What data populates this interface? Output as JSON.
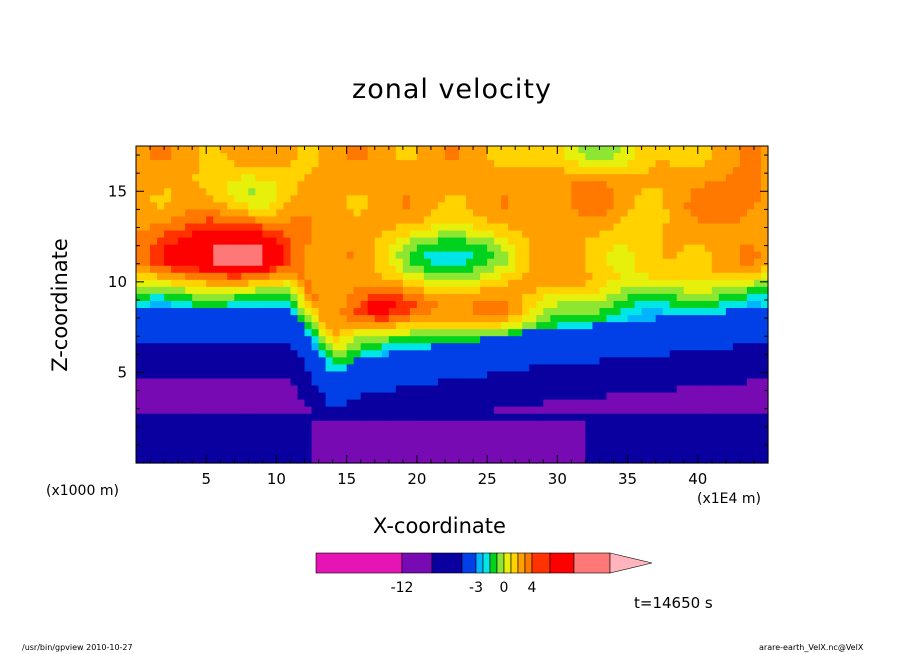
{
  "chart_data": {
    "type": "heatmap",
    "title": "zonal velocity",
    "xlabel": "X-coordinate",
    "ylabel": "Z-coordinate",
    "x_unit_left": "(x1000 m)",
    "x_unit_right": "(x1E4 m)",
    "xlim": [
      0,
      45
    ],
    "ylim": [
      0,
      17.5
    ],
    "x_ticks": [
      "5",
      "10",
      "15",
      "20",
      "25",
      "30",
      "35",
      "40"
    ],
    "x_tick_values": [
      5,
      10,
      15,
      20,
      25,
      30,
      35,
      40
    ],
    "y_ticks": [
      "5",
      "10",
      "15"
    ],
    "y_tick_values": [
      5,
      10,
      15
    ],
    "colorbar": {
      "labels": [
        "-12",
        "-3",
        "0",
        "4"
      ],
      "label_values": [
        -12,
        -3,
        0,
        4
      ],
      "levels": [
        -20,
        -12,
        -9,
        -6,
        -4,
        -3,
        -2,
        -1,
        0,
        1,
        2,
        3,
        4,
        6,
        10
      ],
      "colors": [
        "#e614b4",
        "#780ab4",
        "#0a00a0",
        "#0040e6",
        "#00b4ff",
        "#00e6e6",
        "#00d21e",
        "#8ce632",
        "#e6f00a",
        "#ffd200",
        "#ffa000",
        "#ff7800",
        "#ff3200",
        "#ff0000",
        "#ff7878",
        "#ffb4be"
      ]
    },
    "time_label": "t=14650 s",
    "grid": false
  },
  "footer": {
    "left": "/usr/bin/gpview  2010-10-27",
    "right": "arare-earth_VelX.nc@VelX"
  }
}
